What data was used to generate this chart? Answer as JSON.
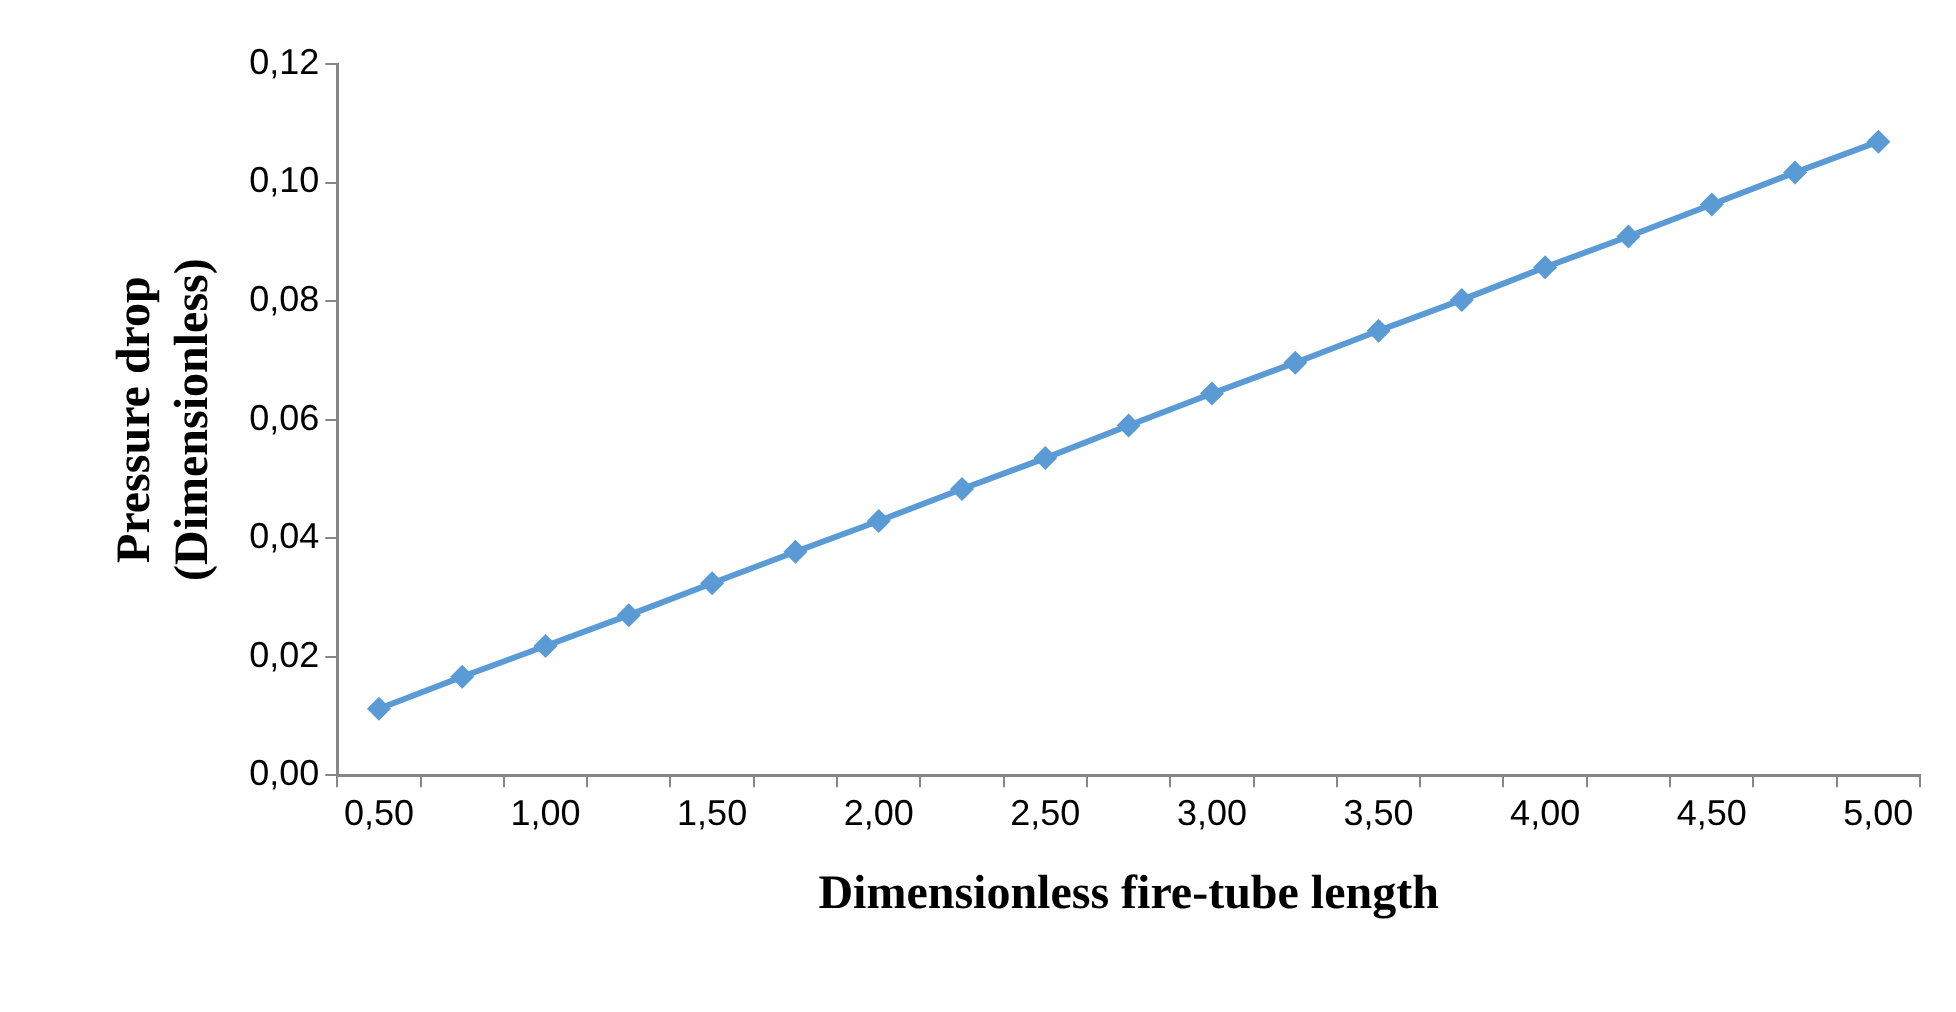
{
  "chart_data": {
    "type": "line",
    "xlabel": "Dimensionless fire-tube length",
    "ylabel": "Pressure drop\n(Dimensionless)",
    "categories": [
      "0,50",
      null,
      "1,00",
      null,
      "1,50",
      null,
      "2,00",
      null,
      "2,50",
      null,
      "3,00",
      null,
      "3,50",
      null,
      "4,00",
      null,
      "4,50",
      null,
      "5,00"
    ],
    "series": [
      {
        "color": "#5b9bd5",
        "values": [
          0.0112,
          0.0166,
          0.0218,
          0.027,
          0.0324,
          0.0377,
          0.0429,
          0.0483,
          0.0535,
          0.059,
          0.0644,
          0.0696,
          0.075,
          0.0802,
          0.0857,
          0.0909,
          0.0963,
          0.1017,
          0.1069
        ]
      }
    ],
    "ylim": [
      0,
      0.12
    ],
    "yticks": [
      {
        "value": 0,
        "label": "0,00"
      },
      {
        "value": 0.02,
        "label": "0,02"
      },
      {
        "value": 0.04,
        "label": "0,04"
      },
      {
        "value": 0.06,
        "label": "0,06"
      },
      {
        "value": 0.08,
        "label": "0,08"
      },
      {
        "value": 0.1,
        "label": "0,10"
      },
      {
        "value": 0.12,
        "label": "0,12"
      }
    ],
    "grid": false,
    "legend": false,
    "marker": "diamond",
    "line_style": "solid"
  }
}
